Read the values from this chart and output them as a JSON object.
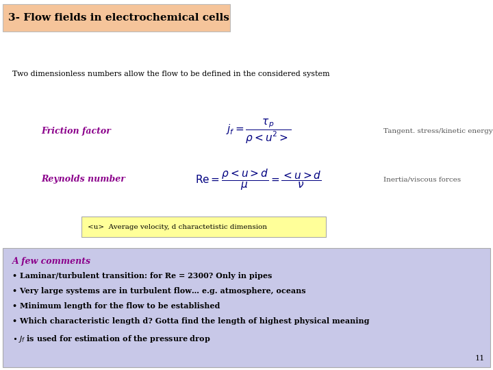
{
  "title": "3- Flow fields in electrochemical cells",
  "title_bg": "#F5C49A",
  "subtitle": "Two dimensionless numbers allow the flow to be defined in the considered system",
  "friction_label": "Friction factor",
  "friction_formula": "$j_f = \\dfrac{\\tau_p}{\\rho < u^2 >}$",
  "friction_desc": "Tangent. stress/kinetic energy",
  "reynolds_label": "Reynolds number",
  "reynolds_formula": "$\\mathrm{Re} = \\dfrac{\\rho < u > d}{\\mu} = \\dfrac{< u > d}{\\nu}$",
  "reynolds_desc": "Inertia/viscous forces",
  "note_text": "<u>  Average velocity, d charactetistic dimension",
  "note_bg": "#FFFF99",
  "comments_title": "A few comments",
  "comments_bg": "#C8C8E8",
  "label_color": "#8B008B",
  "desc_color": "#555555",
  "formula_color": "#000080",
  "comment_color": "#000000",
  "page_num": "11",
  "bg_color": "#FFFFFF",
  "title_fontsize": 11,
  "subtitle_fontsize": 8,
  "label_fontsize": 9,
  "formula_fontsize": 9,
  "desc_fontsize": 7.5,
  "note_fontsize": 7.5,
  "comment_title_fontsize": 9,
  "comment_fontsize": 8,
  "pagenum_fontsize": 8
}
